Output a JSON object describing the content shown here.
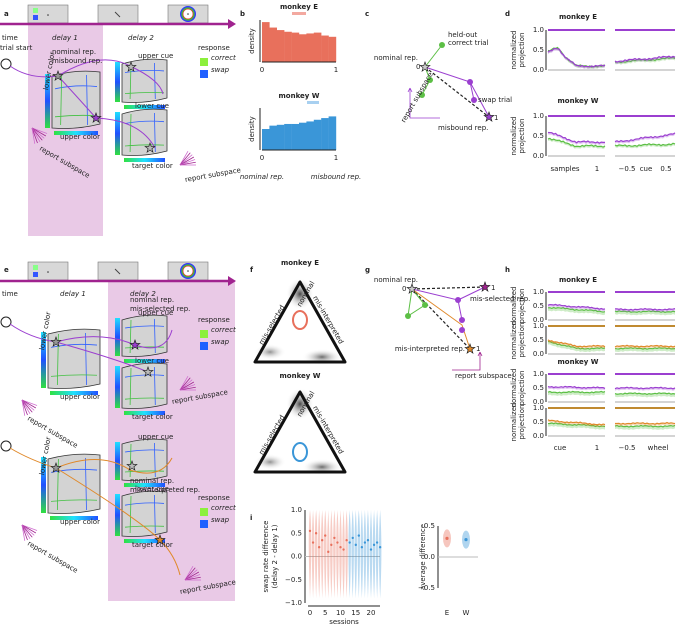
{
  "a": {
    "label": "a",
    "time": "time",
    "delay1": "delay 1",
    "delay2": "delay 2",
    "nominal": "nominal rep.",
    "misbound": "misbound rep.",
    "response": "response",
    "correct": "correct",
    "swap": "swap",
    "trial_start": "trial start",
    "upper_cue": "upper cue",
    "lower_cue": "lower cue",
    "upper_color": "upper color",
    "lower_color": "lower color",
    "target_color": "target color",
    "report_subspace": "report subspace"
  },
  "b": {
    "label": "b",
    "monkey_E": "monkey E",
    "monkey_W": "monkey W",
    "ylabel": "density",
    "xticks": [
      "0",
      "1"
    ],
    "xlabel_left": "nominal rep.",
    "xlabel_right": "misbound rep.",
    "hist_E": [
      0.95,
      0.82,
      0.76,
      0.72,
      0.7,
      0.66,
      0.68,
      0.7,
      0.63,
      0.6
    ],
    "hist_W": [
      0.5,
      0.58,
      0.6,
      0.62,
      0.62,
      0.65,
      0.68,
      0.72,
      0.76,
      0.8
    ]
  },
  "c": {
    "label": "c",
    "nominal": "nominal rep.",
    "zero": "0",
    "held_out": [
      "held-out",
      "correct trial"
    ],
    "swap": "swap trial",
    "one": "1",
    "misbound": "misbound rep.",
    "report_subspace": "report subspace"
  },
  "d": {
    "label": "d",
    "monkey_E": "monkey E",
    "monkey_W": "monkey W",
    "ylabel": [
      "normalized",
      "projection"
    ],
    "yticks": [
      "0.0",
      "0.5",
      "1.0"
    ],
    "xlabel_left": "samples",
    "xtick_left": "1",
    "xticks_right": [
      "−0.5",
      "cue",
      "0.5"
    ]
  },
  "e": {
    "label": "e",
    "time": "time",
    "delay1": "delay 1",
    "delay2": "delay 2",
    "nominal": "nominal rep.",
    "mis_selected": "mis-selected rep.",
    "mis_interpreted": "mis-interpreted rep.",
    "response": "response",
    "correct": "correct",
    "swap": "swap",
    "trial_start": "trial start",
    "upper_cue": "upper cue",
    "lower_cue": "lower cue",
    "upper_color": "upper color",
    "lower_color": "lower color",
    "target_color": "target color",
    "report_subspace": "report subspace"
  },
  "f": {
    "label": "f",
    "monkey_E": "monkey E",
    "monkey_W": "monkey W",
    "nominal": "nominal",
    "mis_selected": "mis-selected",
    "mis_interpreted": "mis-interpreted"
  },
  "g": {
    "label": "g",
    "nominal": "nominal rep.",
    "zero": "0",
    "one": "1",
    "mis_selected": "mis-selected rep.",
    "mis_interpreted": "mis-interpreted rep.",
    "report_subspace": "report subspace"
  },
  "h": {
    "label": "h",
    "monkey_E": "monkey E",
    "monkey_W": "monkey W",
    "ylabel": [
      "normalized",
      "projection"
    ],
    "yticks": [
      "0.0",
      "0.5",
      "1.0"
    ],
    "xticks_left": [
      "cue",
      "1"
    ],
    "xticks_right": [
      "−0.5",
      "wheel"
    ]
  },
  "i": {
    "label": "i",
    "ylabel": [
      "swap rate difference",
      "(delay 2 - delay 1)"
    ],
    "yticks": [
      "1.0",
      "0.5",
      "0.0",
      "−0.5",
      "−1.0"
    ],
    "xlabel": "sessions",
    "xticks": [
      "0",
      "5",
      "10",
      "15",
      "20"
    ],
    "ylabel2": "average difference",
    "yticks2": [
      "0.5",
      "0.0",
      "−0.5"
    ],
    "xticks2": [
      "E",
      "W"
    ],
    "sessions_E": [
      0.55,
      0.3,
      0.5,
      0.2,
      0.35,
      0.45,
      0.1,
      0.25,
      0.4,
      0.3,
      0.2,
      0.15,
      0.35
    ],
    "sessions_W": [
      0.3,
      0.4,
      0.25,
      0.45,
      0.2,
      0.3,
      0.35,
      0.15,
      0.25,
      0.3,
      0.2
    ],
    "mean_E": 0.3,
    "mean_W": 0.28
  }
}
